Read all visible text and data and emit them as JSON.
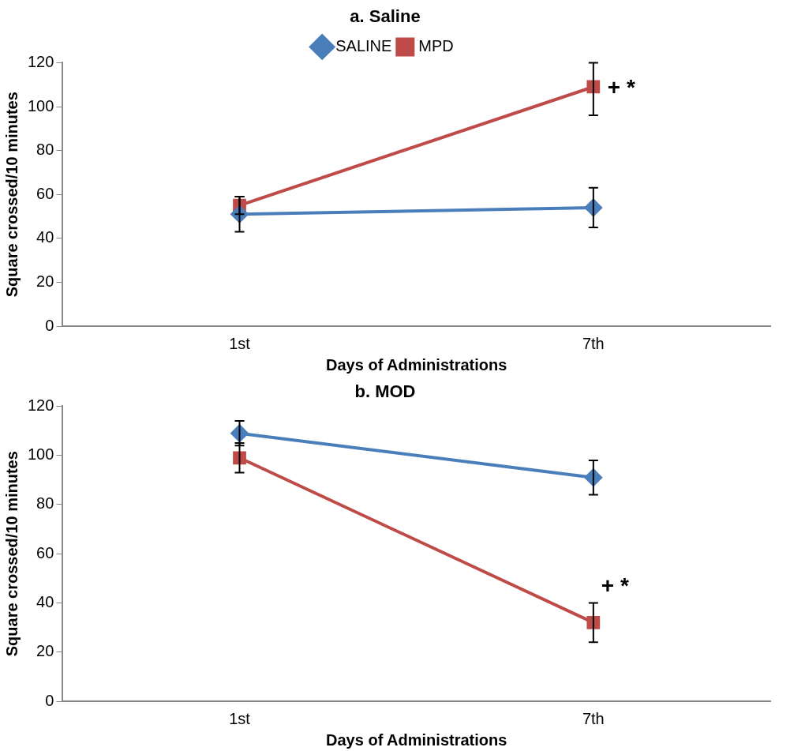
{
  "chart_data": [
    {
      "type": "line",
      "title": "a. Saline",
      "xlabel": "Days of Administrations",
      "ylabel": "Square crossed/10 minutes",
      "categories": [
        "1st",
        "7th"
      ],
      "series": [
        {
          "name": "SALINE",
          "color": "#4a7ebb",
          "marker": "diamond",
          "values": [
            51,
            54
          ],
          "errors": [
            8,
            9
          ]
        },
        {
          "name": "MPD",
          "color": "#be4b48",
          "marker": "square",
          "values": [
            55,
            109
          ],
          "errors": [
            4,
            [
              96,
              120
            ]
          ]
        }
      ],
      "ylim": [
        0,
        120
      ],
      "yticks": [
        0,
        20,
        40,
        60,
        80,
        100,
        120
      ],
      "grid": false,
      "legend": "top",
      "annotations": [
        {
          "text": "+ *",
          "x": "7th",
          "y": 108
        }
      ]
    },
    {
      "type": "line",
      "title": "b. MOD",
      "xlabel": "Days of Administrations",
      "ylabel": "Square crossed/10 minutes",
      "categories": [
        "1st",
        "7th"
      ],
      "series": [
        {
          "color": "#4a7ebb",
          "marker": "diamond",
          "values": [
            109,
            91
          ],
          "errors": [
            5,
            7
          ]
        },
        {
          "color": "#be4b48",
          "marker": "square",
          "values": [
            99,
            32
          ],
          "errors": [
            6,
            8
          ]
        }
      ],
      "ylim": [
        0,
        120
      ],
      "yticks": [
        0,
        20,
        40,
        60,
        80,
        100,
        120
      ],
      "grid": false,
      "legend": false,
      "annotations": [
        "+ *"
      ]
    }
  ]
}
